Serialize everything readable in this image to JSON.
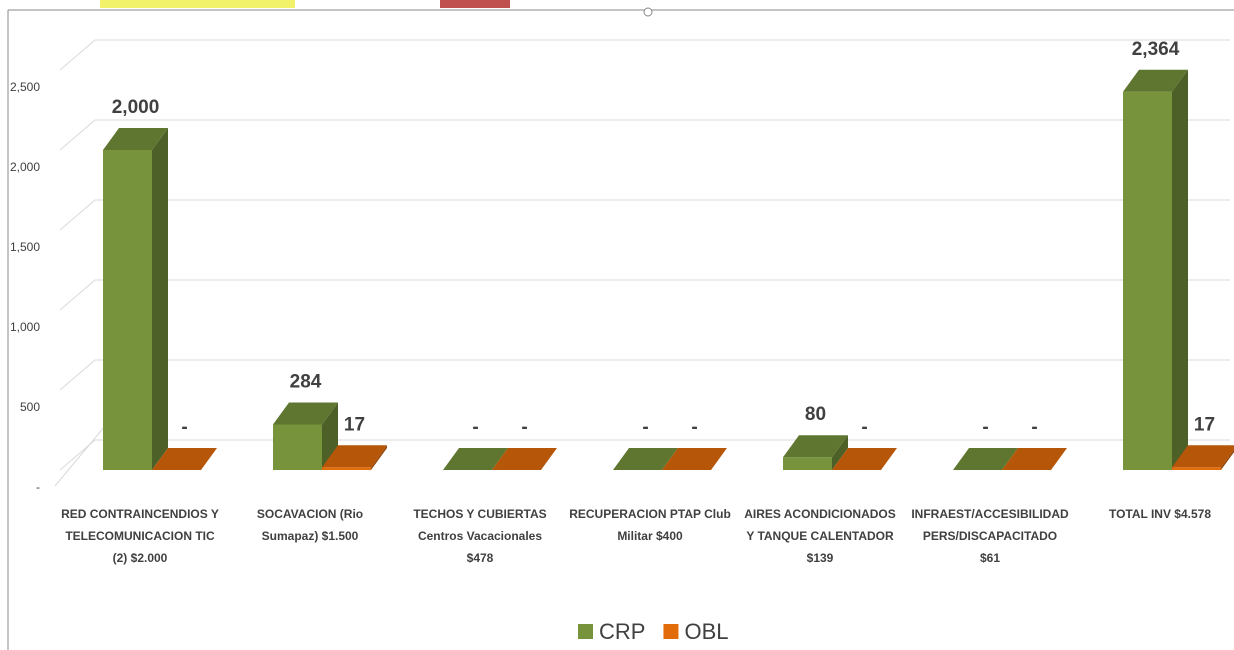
{
  "chart_data": {
    "type": "bar3d",
    "categories": [
      "RED CONTRAINCENDIOS Y\nTELECOMUNICACION TIC\n(2)  $2.000",
      "SOCAVACION (Rio\nSumapaz)  $1.500",
      "TECHOS Y CUBIERTAS\nCentros Vacacionales\n$478",
      "RECUPERACION PTAP Club\nMilitar $400",
      "AIRES ACONDICIONADOS\nY TANQUE CALENTADOR\n$139",
      "INFRAEST/ACCESIBILIDAD\nPERS/DISCAPACITADO\n$61",
      "TOTAL INV $4.578"
    ],
    "series": [
      {
        "name": "CRP",
        "color": "#77933c",
        "values": [
          2000,
          284,
          0,
          0,
          80,
          0,
          2364
        ],
        "value_labels": [
          "2,000",
          "284",
          "-",
          "-",
          "80",
          "-",
          "2,364"
        ]
      },
      {
        "name": "OBL",
        "color": "#e36c0a",
        "values": [
          0,
          17,
          0,
          0,
          0,
          0,
          17
        ],
        "value_labels": [
          "-",
          "17",
          "-",
          "-",
          "-",
          "-",
          "17"
        ]
      }
    ],
    "ylim": [
      0,
      2500
    ],
    "yticks": [
      {
        "value": 0,
        "label": "-"
      },
      500,
      {
        "value": 1000,
        "label": "1,000"
      },
      {
        "value": 1500,
        "label": "1,500"
      },
      {
        "value": 2000,
        "label": "2,000"
      },
      {
        "value": 2500,
        "label": "2,500"
      }
    ],
    "grid": true,
    "legend": "bottom"
  }
}
